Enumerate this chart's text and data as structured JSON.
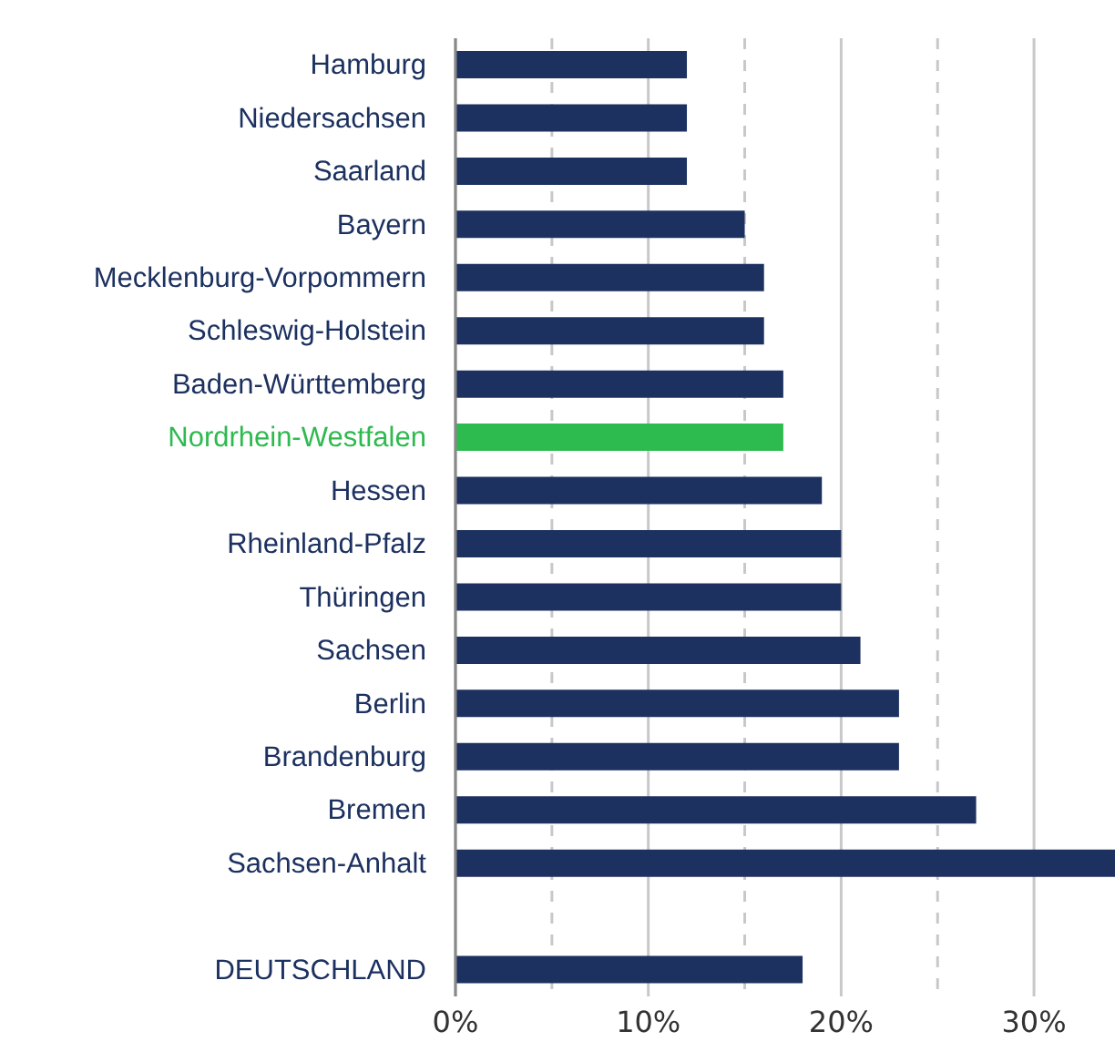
{
  "chart_data": {
    "type": "bar",
    "orientation": "horizontal",
    "categories": [
      "Hamburg",
      "Niedersachsen",
      "Saarland",
      "Bayern",
      "Mecklenburg-Vorpommern",
      "Schleswig-Holstein",
      "Baden-Württemberg",
      "Nordrhein-Westfalen",
      "Hessen",
      "Rheinland-Pfalz",
      "Thüringen",
      "Sachsen",
      "Berlin",
      "Brandenburg",
      "Bremen",
      "Sachsen-Anhalt",
      null,
      "DEUTSCHLAND"
    ],
    "values": [
      12,
      12,
      12,
      15,
      16,
      16,
      17,
      17,
      19,
      20,
      20,
      21,
      23,
      23,
      27,
      34.2,
      null,
      18
    ],
    "colors": [
      "#1c3160",
      "#1c3160",
      "#1c3160",
      "#1c3160",
      "#1c3160",
      "#1c3160",
      "#1c3160",
      "#2dba4e",
      "#1c3160",
      "#1c3160",
      "#1c3160",
      "#1c3160",
      "#1c3160",
      "#1c3160",
      "#1c3160",
      "#1c3160",
      "#1c3160",
      "#1c3160"
    ],
    "xlim": [
      0,
      34.2
    ],
    "xticks": [
      {
        "value": 0,
        "label": "0%"
      },
      {
        "value": 5,
        "label": null
      },
      {
        "value": 10,
        "label": "10%"
      },
      {
        "value": 15,
        "label": null
      },
      {
        "value": 20,
        "label": "20%"
      },
      {
        "value": 25,
        "label": null
      },
      {
        "value": 30,
        "label": "30%"
      }
    ],
    "grid": "x"
  }
}
